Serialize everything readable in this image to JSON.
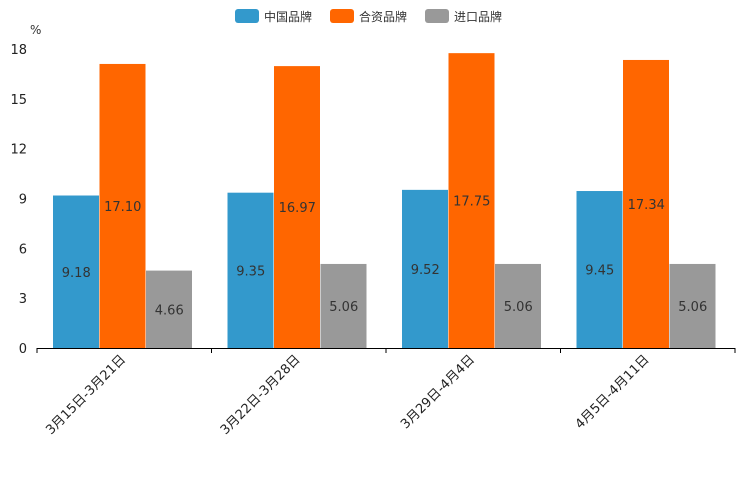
{
  "chart_data": {
    "type": "bar",
    "title": "",
    "xlabel": "",
    "ylabel": "%",
    "ylim": [
      0,
      18
    ],
    "yticks": [
      0,
      3,
      6,
      9,
      12,
      15,
      18
    ],
    "grid": false,
    "legend_position": "top-center",
    "categories": [
      "3月15日-3月21日",
      "3月22日-3月28日",
      "3月29日-4月4日",
      "4月5日-4月11日"
    ],
    "series": [
      {
        "name": "中国品牌",
        "color": "#3399CC",
        "values": [
          9.18,
          9.35,
          9.52,
          9.45
        ]
      },
      {
        "name": "合资品牌",
        "color": "#FF6600",
        "values": [
          17.1,
          16.97,
          17.75,
          17.34
        ]
      },
      {
        "name": "进口品牌",
        "color": "#999999",
        "values": [
          4.66,
          5.06,
          5.06,
          5.06
        ]
      }
    ]
  }
}
